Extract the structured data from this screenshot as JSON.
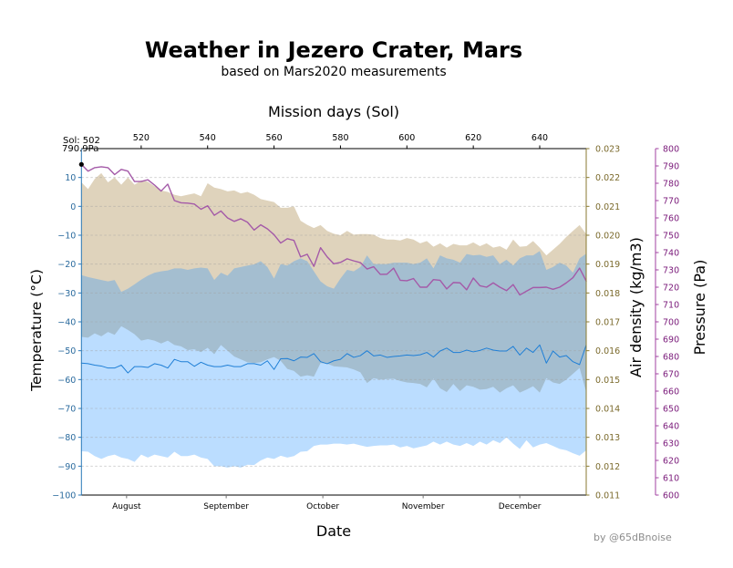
{
  "credit": "by @65dBnoise",
  "chart_data": {
    "type": "area",
    "title": "Weather in Jezero Crater, Mars",
    "subtitle": "based on Mars2020 measurements",
    "xlim": [
      502,
      654
    ],
    "x_top": {
      "label": "Mission days (Sol)",
      "ticks": [
        520,
        540,
        560,
        580,
        600,
        620,
        640
      ],
      "tick_labels": [
        "520",
        "540",
        "560",
        "580",
        "600",
        "620",
        "640"
      ]
    },
    "x_bottom": {
      "label": "Date",
      "ticks": [
        515.6,
        545.6,
        574.7,
        604.9,
        634.0
      ],
      "tick_labels": [
        "August",
        "September",
        "October",
        "November",
        "December"
      ]
    },
    "axes": {
      "temperature": {
        "label": "Temperature (°C)",
        "ylim": [
          -100,
          20
        ],
        "ticks": [
          -100,
          -90,
          -80,
          -70,
          -60,
          -50,
          -40,
          -30,
          -20,
          -10,
          0,
          10
        ],
        "tick_labels": [
          "−100",
          "−90",
          "−80",
          "−70",
          "−60",
          "−50",
          "−40",
          "−30",
          "−20",
          "−10",
          "0",
          "10"
        ],
        "color": "#2f8fdc",
        "tick_color": "#2b6b9e",
        "side": "left"
      },
      "density": {
        "label": "Air density (kg/m3)",
        "ylim": [
          0.011,
          0.023
        ],
        "ticks": [
          0.011,
          0.012,
          0.013,
          0.014,
          0.015,
          0.016,
          0.017,
          0.018,
          0.019,
          0.02,
          0.021,
          0.022,
          0.023
        ],
        "tick_labels": [
          "0.011",
          "0.012",
          "0.013",
          "0.014",
          "0.015",
          "0.016",
          "0.017",
          "0.018",
          "0.019",
          "0.020",
          "0.021",
          "0.022",
          "0.023"
        ],
        "color": "#7b6526",
        "tick_color": "#7b6a2c",
        "side": "right"
      },
      "pressure": {
        "label": "Pressure (Pa)",
        "ylim": [
          600,
          800
        ],
        "ticks": [
          600,
          610,
          620,
          630,
          640,
          650,
          660,
          670,
          680,
          690,
          700,
          710,
          720,
          730,
          740,
          750,
          760,
          770,
          780,
          790,
          800
        ],
        "tick_labels": [
          "600",
          "610",
          "620",
          "630",
          "640",
          "650",
          "660",
          "670",
          "680",
          "690",
          "700",
          "710",
          "720",
          "730",
          "740",
          "750",
          "760",
          "770",
          "780",
          "790",
          "800"
        ],
        "color": "#800080",
        "tick_color": "#7a1a7a",
        "side": "right-outer"
      }
    },
    "grid": {
      "axis": "temperature",
      "style": "dashed",
      "on": true
    },
    "x": [
      502,
      504,
      506,
      508,
      510,
      512,
      514,
      516,
      518,
      520,
      522,
      524,
      526,
      528,
      530,
      532,
      534,
      536,
      538,
      540,
      542,
      544,
      546,
      548,
      550,
      552,
      554,
      556,
      558,
      560,
      562,
      564,
      566,
      568,
      570,
      572,
      574,
      576,
      578,
      580,
      582,
      584,
      586,
      588,
      590,
      592,
      594,
      596,
      598,
      600,
      602,
      604,
      606,
      608,
      610,
      612,
      614,
      616,
      618,
      620,
      622,
      624,
      626,
      628,
      630,
      632,
      634,
      636,
      638,
      640,
      642,
      644,
      646,
      648,
      650,
      652,
      654
    ],
    "series": [
      {
        "name": "Air density range",
        "kind": "band",
        "axis": "density",
        "color": "#dfd3bc",
        "opacity": 1,
        "high": [
          0.02183,
          0.0216,
          0.02195,
          0.02215,
          0.02183,
          0.022,
          0.02175,
          0.022,
          0.02175,
          0.0219,
          0.02185,
          0.0217,
          0.02155,
          0.0215,
          0.0214,
          0.02135,
          0.0214,
          0.02145,
          0.02135,
          0.0218,
          0.02165,
          0.0216,
          0.02152,
          0.02155,
          0.02145,
          0.0215,
          0.0214,
          0.02125,
          0.0212,
          0.02115,
          0.02095,
          0.02095,
          0.021,
          0.0205,
          0.02036,
          0.02025,
          0.02035,
          0.02015,
          0.02005,
          0.02,
          0.02015,
          0.02002,
          0.02004,
          0.02004,
          0.02002,
          0.0199,
          0.01985,
          0.01985,
          0.01982,
          0.0199,
          0.01985,
          0.01972,
          0.0198,
          0.0196,
          0.01972,
          0.01957,
          0.0197,
          0.01965,
          0.01965,
          0.01975,
          0.01962,
          0.01972,
          0.01957,
          0.01962,
          0.0195,
          0.01985,
          0.0196,
          0.01962,
          0.0198,
          0.01957,
          0.0193,
          0.0195,
          0.0197,
          0.01994,
          0.02015,
          0.02035,
          0.02004
        ],
        "low": [
          0.01648,
          0.01645,
          0.0166,
          0.0165,
          0.01665,
          0.01655,
          0.01685,
          0.01672,
          0.01657,
          0.01635,
          0.0164,
          0.01635,
          0.01625,
          0.01635,
          0.0162,
          0.01615,
          0.01602,
          0.01605,
          0.01595,
          0.0161,
          0.01588,
          0.0162,
          0.016,
          0.0158,
          0.0157,
          0.0156,
          0.01557,
          0.0156,
          0.0157,
          0.01578,
          0.01565,
          0.01537,
          0.0153,
          0.0151,
          0.01515,
          0.0151,
          0.01557,
          0.01555,
          0.01546,
          0.01544,
          0.01542,
          0.01535,
          0.01525,
          0.01488,
          0.01505,
          0.015,
          0.01502,
          0.01503,
          0.01495,
          0.0149,
          0.01488,
          0.01485,
          0.01473,
          0.01504,
          0.0147,
          0.01457,
          0.01485,
          0.0146,
          0.0148,
          0.01475,
          0.01465,
          0.01467,
          0.01475,
          0.01455,
          0.0147,
          0.0148,
          0.01455,
          0.01465,
          0.01477,
          0.01455,
          0.01505,
          0.0149,
          0.01485,
          0.015,
          0.0152,
          0.0154,
          0.01457
        ]
      },
      {
        "name": "Temperature range",
        "kind": "band",
        "axis": "temperature",
        "color": "#1e90ff",
        "opacity": 0.3,
        "high": [
          -23.8,
          -24.5,
          -25,
          -25.5,
          -26,
          -25.5,
          -29.6,
          -28.5,
          -27,
          -25.4,
          -24,
          -23,
          -22.5,
          -22.2,
          -21.5,
          -21.5,
          -22,
          -21.5,
          -21.2,
          -21.5,
          -25.5,
          -23,
          -24,
          -21.5,
          -21,
          -20.5,
          -20.1,
          -19,
          -21,
          -25,
          -20,
          -20.5,
          -19,
          -18,
          -19,
          -22.5,
          -26,
          -27.7,
          -28.5,
          -25,
          -22,
          -22.5,
          -21,
          -17,
          -20,
          -20,
          -20,
          -19.5,
          -19.5,
          -19.5,
          -20,
          -19.5,
          -18,
          -21.5,
          -17,
          -18,
          -18.5,
          -19.5,
          -16.5,
          -17,
          -16.8,
          -17.5,
          -17,
          -20,
          -18.5,
          -20.5,
          -18,
          -17,
          -17,
          -15.5,
          -22,
          -21,
          -19.5,
          -20.5,
          -23,
          -18,
          -16.4
        ],
        "low": [
          -84.8,
          -85,
          -86.5,
          -87.5,
          -86.5,
          -86,
          -87,
          -87.5,
          -88.5,
          -86,
          -87,
          -86,
          -86.5,
          -87,
          -85,
          -86.5,
          -86.5,
          -86,
          -87,
          -87.5,
          -90,
          -90,
          -90.5,
          -90,
          -90.5,
          -89.5,
          -89.6,
          -88,
          -87,
          -87.5,
          -86.4,
          -87,
          -86.5,
          -85,
          -84.8,
          -83,
          -82.5,
          -82.5,
          -82.2,
          -82.2,
          -82.5,
          -82.2,
          -82.8,
          -83.3,
          -83,
          -82.8,
          -82.8,
          -82.5,
          -83.5,
          -83,
          -83.8,
          -83.3,
          -82.8,
          -81.5,
          -82.5,
          -81.5,
          -82.5,
          -83,
          -82,
          -83,
          -81.5,
          -82.5,
          -81,
          -82,
          -80,
          -82.2,
          -84,
          -81,
          -83.5,
          -82.5,
          -82,
          -83,
          -84,
          -84.5,
          -85.5,
          -86.4,
          -84.5
        ]
      },
      {
        "name": "Temperature",
        "kind": "line",
        "axis": "temperature",
        "color": "#1f7fd6",
        "values": [
          -54.3,
          -54.5,
          -55,
          -55.3,
          -56,
          -56,
          -55,
          -57.7,
          -55.5,
          -55.5,
          -55.8,
          -54.5,
          -55,
          -56,
          -53,
          -53.8,
          -53.8,
          -55.4,
          -54,
          -55,
          -55.5,
          -55.5,
          -55,
          -55.5,
          -55.5,
          -54.5,
          -54.5,
          -55,
          -53.5,
          -56.5,
          -52.8,
          -52.7,
          -53.5,
          -52.2,
          -52.3,
          -51,
          -53.8,
          -54.5,
          -53.5,
          -53,
          -51,
          -52.3,
          -51.7,
          -50,
          -51.8,
          -51.5,
          -52.3,
          -52,
          -51.8,
          -51.5,
          -51.7,
          -51.4,
          -50.6,
          -52.2,
          -50.1,
          -49.1,
          -50.6,
          -50.6,
          -49.8,
          -50.4,
          -49.9,
          -49.1,
          -49.8,
          -50.1,
          -50.1,
          -48.5,
          -51.5,
          -49.1,
          -50.6,
          -48,
          -54.3,
          -50.1,
          -52.2,
          -51.7,
          -53.8,
          -54.8,
          -48
        ]
      },
      {
        "name": "Pressure",
        "kind": "line",
        "axis": "pressure",
        "color": "#a45aa8",
        "values": [
          790.9,
          787,
          789,
          789.5,
          789,
          785,
          788,
          787,
          781,
          781,
          782,
          779,
          775.5,
          779.5,
          770,
          768.7,
          768.5,
          768,
          765,
          767,
          761.5,
          764,
          760,
          758,
          759.5,
          757.5,
          753,
          756,
          753.7,
          750.3,
          745.5,
          748,
          747,
          737.5,
          739,
          732,
          742.8,
          737.5,
          733.5,
          734.3,
          736.4,
          735.2,
          734.2,
          730.5,
          731.8,
          727.4,
          727.5,
          731,
          724,
          723.7,
          725,
          720,
          720,
          724.4,
          724,
          719,
          722.7,
          722.5,
          718.5,
          725.3,
          720.8,
          720,
          722.5,
          720,
          718,
          721.5,
          715.5,
          717.7,
          719.8,
          719.8,
          720,
          718.8,
          720,
          722.5,
          725.5,
          731,
          723.5
        ]
      }
    ],
    "annotation": {
      "sol": 502,
      "axis": "pressure",
      "value": 790.9,
      "lines": [
        "Sol: 502",
        "790.9Pa"
      ]
    }
  }
}
